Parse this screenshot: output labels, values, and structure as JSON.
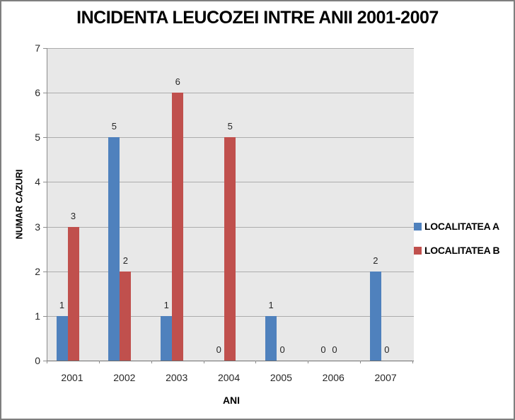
{
  "chart_data": {
    "type": "bar",
    "title": "INCIDENTA LEUCOZEI INTRE ANII 2001-2007",
    "xlabel": "ANI",
    "ylabel": "NUMAR CAZURI",
    "categories": [
      "2001",
      "2002",
      "2003",
      "2004",
      "2005",
      "2006",
      "2007"
    ],
    "series": [
      {
        "name": "LOCALITATEA A",
        "color": "#4F81BD",
        "values": [
          1,
          5,
          1,
          0,
          1,
          0,
          2
        ]
      },
      {
        "name": "LOCALITATEA B",
        "color": "#C0504D",
        "values": [
          3,
          2,
          6,
          5,
          0,
          0,
          0
        ]
      }
    ],
    "ylim": [
      0,
      7
    ],
    "ytick_step": 1,
    "yticks": [
      "0",
      "1",
      "2",
      "3",
      "4",
      "5",
      "6",
      "7"
    ],
    "grid": true,
    "data_labels": true,
    "legend_position": "right"
  },
  "colors": {
    "plot_bg": "#E8E8E8",
    "gridline": "#ACACAC",
    "y_axis_line": "#8C8C8C",
    "x_axis_line": "#6E6E6E",
    "tick_mark": "#8C8C8C",
    "frame_border": "#7F7F7F",
    "text": "#262626"
  }
}
